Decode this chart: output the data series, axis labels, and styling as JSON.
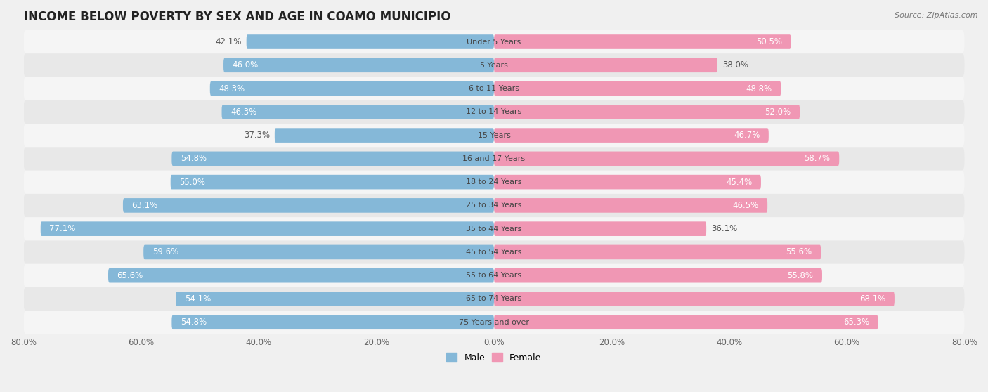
{
  "title": "INCOME BELOW POVERTY BY SEX AND AGE IN COAMO MUNICIPIO",
  "source": "Source: ZipAtlas.com",
  "categories": [
    "Under 5 Years",
    "5 Years",
    "6 to 11 Years",
    "12 to 14 Years",
    "15 Years",
    "16 and 17 Years",
    "18 to 24 Years",
    "25 to 34 Years",
    "35 to 44 Years",
    "45 to 54 Years",
    "55 to 64 Years",
    "65 to 74 Years",
    "75 Years and over"
  ],
  "male_values": [
    54.8,
    54.1,
    65.6,
    59.6,
    77.1,
    63.1,
    55.0,
    54.8,
    37.3,
    46.3,
    48.3,
    46.0,
    42.1
  ],
  "female_values": [
    65.3,
    68.1,
    55.8,
    55.6,
    36.1,
    46.5,
    45.4,
    58.7,
    46.7,
    52.0,
    48.8,
    38.0,
    50.5
  ],
  "male_color": "#85b8d8",
  "female_color": "#f097b4",
  "male_color_light": "#c5dff0",
  "female_color_light": "#f8c8d8",
  "male_label": "Male",
  "female_label": "Female",
  "xlim": 80.0,
  "bar_height": 0.62,
  "background_color": "#f0f0f0",
  "row_color_odd": "#f5f5f5",
  "row_color_even": "#e8e8e8",
  "title_fontsize": 12,
  "label_fontsize": 8.5,
  "tick_fontsize": 8.5,
  "source_fontsize": 8,
  "male_label_threshold": 45.0,
  "female_label_threshold": 45.0
}
